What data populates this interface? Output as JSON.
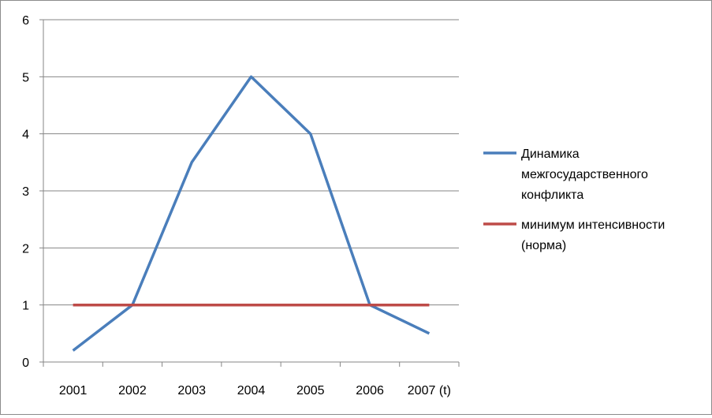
{
  "chart_data": {
    "type": "line",
    "categories": [
      "2001",
      "2002",
      "2003",
      "2004",
      "2005",
      "2006",
      "2007 (t)"
    ],
    "series": [
      {
        "name": "Динамика межгосударственного конфликта",
        "values": [
          0.2,
          1,
          3.5,
          5,
          4,
          1,
          0.5
        ],
        "color": "#4a7ebb"
      },
      {
        "name": "минимум интенсивности (норма)",
        "values": [
          1,
          1,
          1,
          1,
          1,
          1,
          1
        ],
        "color": "#be4b48"
      }
    ],
    "ylim": [
      0,
      6
    ],
    "yticks": [
      "0",
      "1",
      "2",
      "3",
      "4",
      "5",
      "6"
    ],
    "title": "",
    "xlabel": "",
    "ylabel": "",
    "grid": "horizontal",
    "legend_position": "right"
  }
}
